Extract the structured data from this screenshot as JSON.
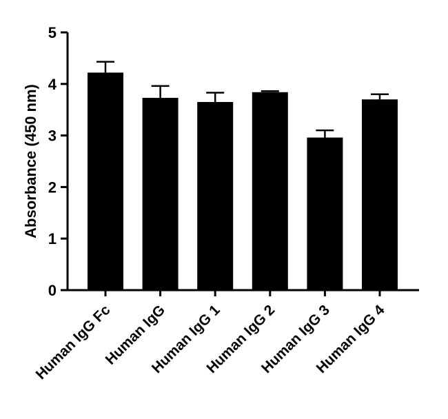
{
  "chart_data": {
    "type": "bar",
    "title": "",
    "xlabel": "",
    "ylabel": "Absorbance (450 nm)",
    "ylim": [
      0,
      5
    ],
    "yticks": [
      "0",
      "1",
      "2",
      "3",
      "4",
      "5"
    ],
    "categories": [
      "Human IgG Fc",
      "Human IgG",
      "Human IgG 1",
      "Human IgG 2",
      "Human IgG 3",
      "Human IgG 4"
    ],
    "values": [
      4.22,
      3.73,
      3.65,
      3.84,
      2.96,
      3.7
    ],
    "error_upper": [
      0.21,
      0.23,
      0.18,
      0.02,
      0.14,
      0.1
    ],
    "bar_color": "#000000",
    "grid": false,
    "legend": "none"
  }
}
